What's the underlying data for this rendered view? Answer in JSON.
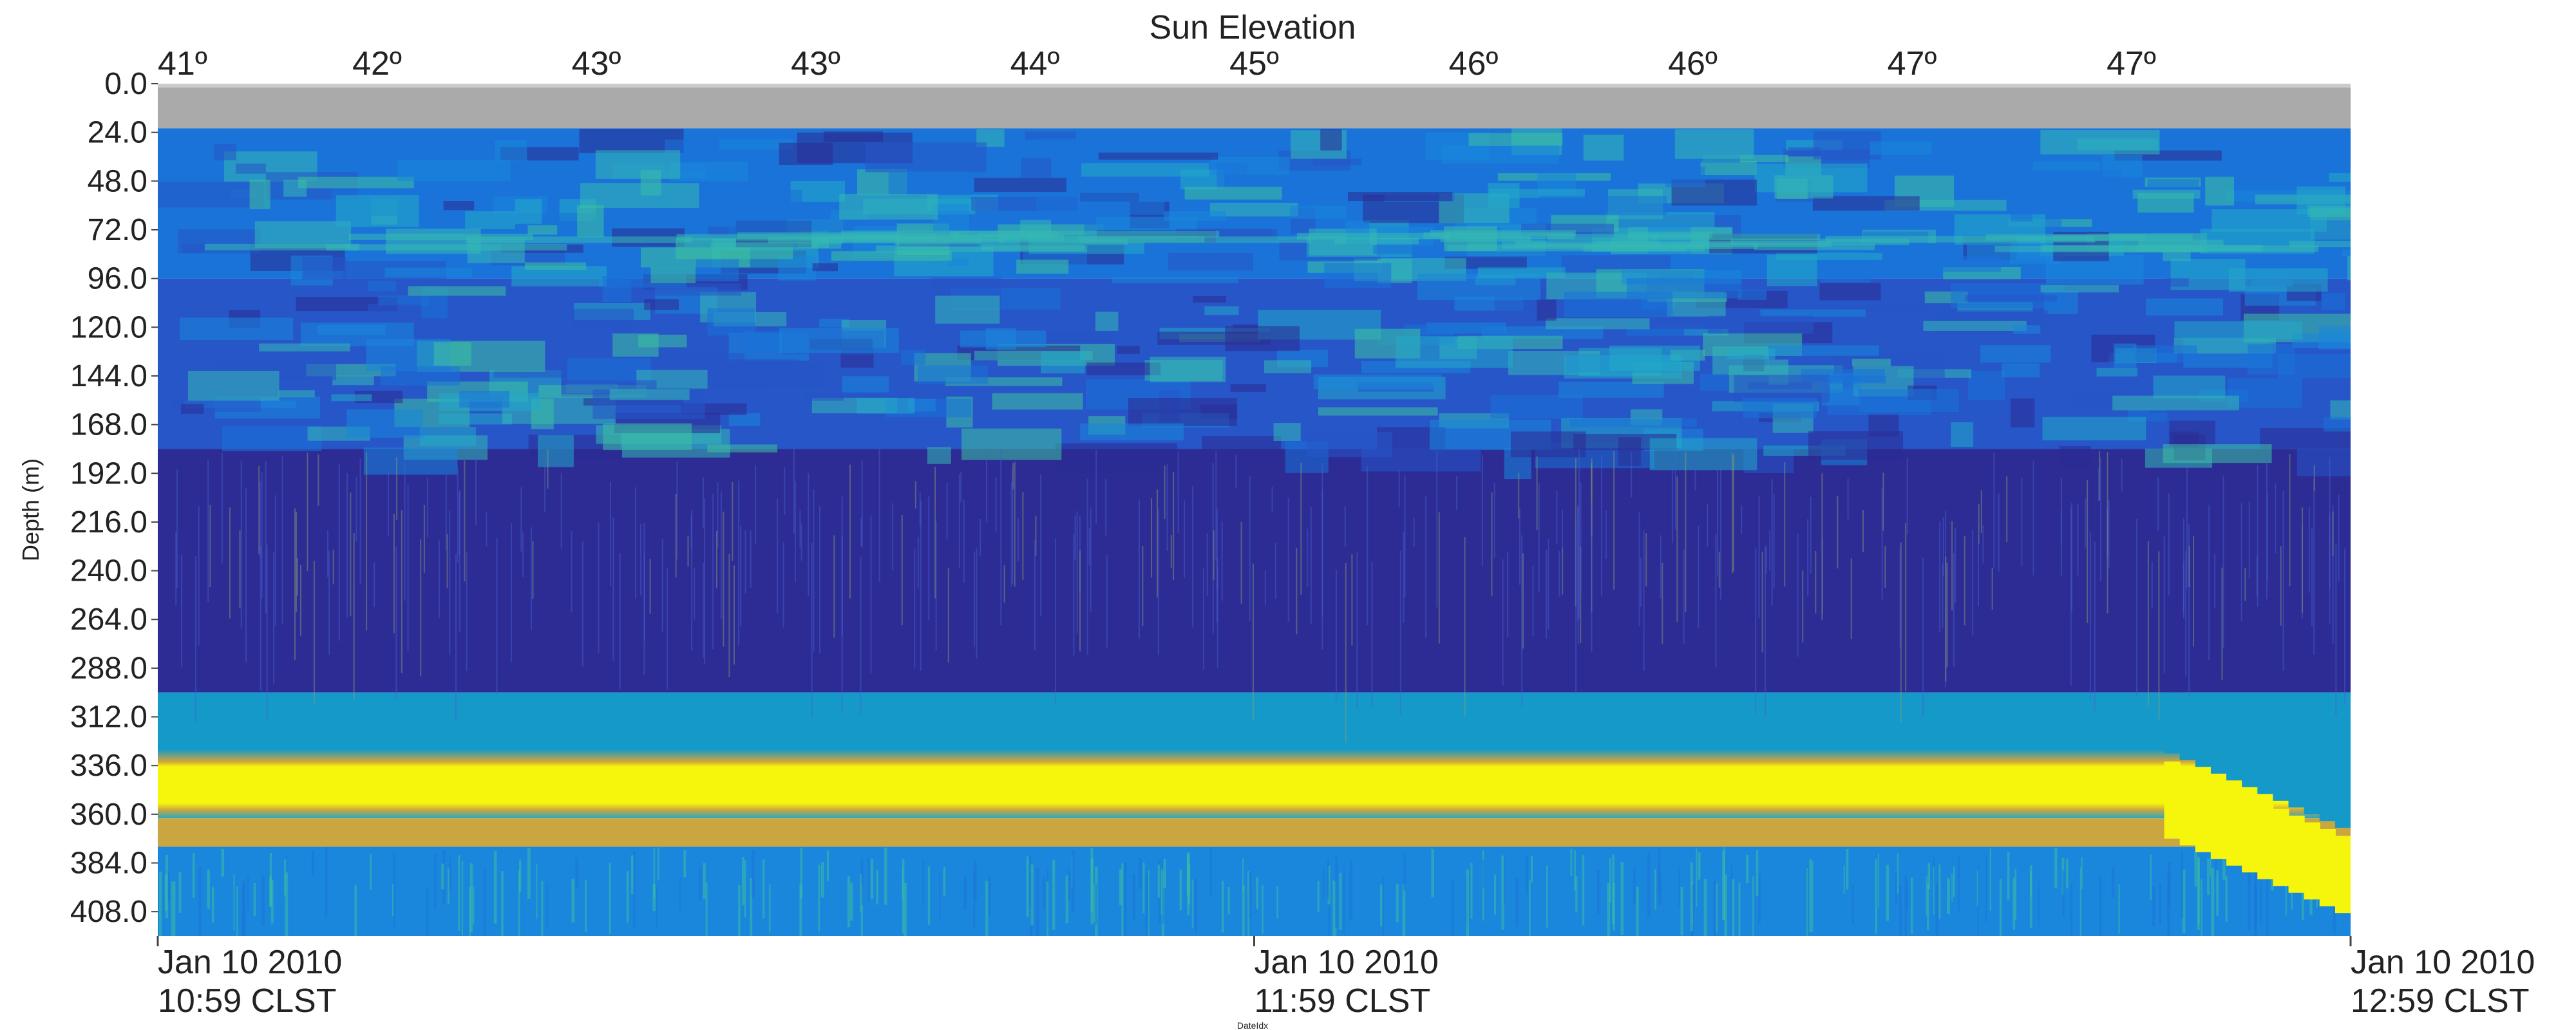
{
  "chart_data": {
    "type": "heatmap",
    "title": "Sun Elevation",
    "ylabel": "Depth (m)",
    "xlabel": "DateIdx",
    "y_axis": {
      "ticks": [
        "0.0",
        "24.0",
        "48.0",
        "72.0",
        "96.0",
        "120.0",
        "144.0",
        "168.0",
        "192.0",
        "216.0",
        "240.0",
        "264.0",
        "288.0",
        "312.0",
        "336.0",
        "360.0",
        "384.0",
        "408.0"
      ],
      "range": [
        0,
        420
      ],
      "inverted": true
    },
    "top_axis": {
      "label": "Sun Elevation",
      "ticks": [
        "41º",
        "42º",
        "43º",
        "43º",
        "44º",
        "45º",
        "46º",
        "46º",
        "47º",
        "47º"
      ]
    },
    "x_axis": {
      "tick_labels": [
        {
          "date": "Jan 10 2010",
          "time": "10:59 CLST"
        },
        {
          "date": "Jan 10 2010",
          "time": "11:59 CLST"
        },
        {
          "date": "Jan 10 2010",
          "time": "12:59 CLST"
        }
      ],
      "range": [
        "Jan 10 2010 10:59 CLST",
        "Jan 10 2010 12:59 CLST"
      ]
    },
    "layers": [
      {
        "depth": [
          0,
          22
        ],
        "value": "no data",
        "color": "#aaaaaa"
      },
      {
        "depth": [
          22,
          96
        ],
        "value": "mixed",
        "color": "#1a73d8"
      },
      {
        "depth": [
          96,
          180
        ],
        "value": "patchy medium",
        "color": "#2656c8"
      },
      {
        "depth": [
          180,
          300
        ],
        "value": "low",
        "color": "#2c2c94"
      },
      {
        "depth": [
          300,
          328
        ],
        "value": "medium",
        "color": "#1499c9"
      },
      {
        "depth": [
          328,
          362
        ],
        "value": "very high",
        "color": "#f6f60c"
      },
      {
        "depth": [
          362,
          376
        ],
        "value": "high",
        "color": "#c9a640"
      },
      {
        "depth": [
          376,
          420
        ],
        "value": "medium",
        "color": "#1a86dc"
      }
    ],
    "colors": {
      "no_data": "#aaaaaa",
      "low": "#2c2c94",
      "mid_low": "#2656c8",
      "mid": "#1a86dc",
      "mid_high": "#23a9c9",
      "high": "#d4a43a",
      "max": "#f6f60c"
    },
    "grid": false,
    "legend": "none"
  }
}
